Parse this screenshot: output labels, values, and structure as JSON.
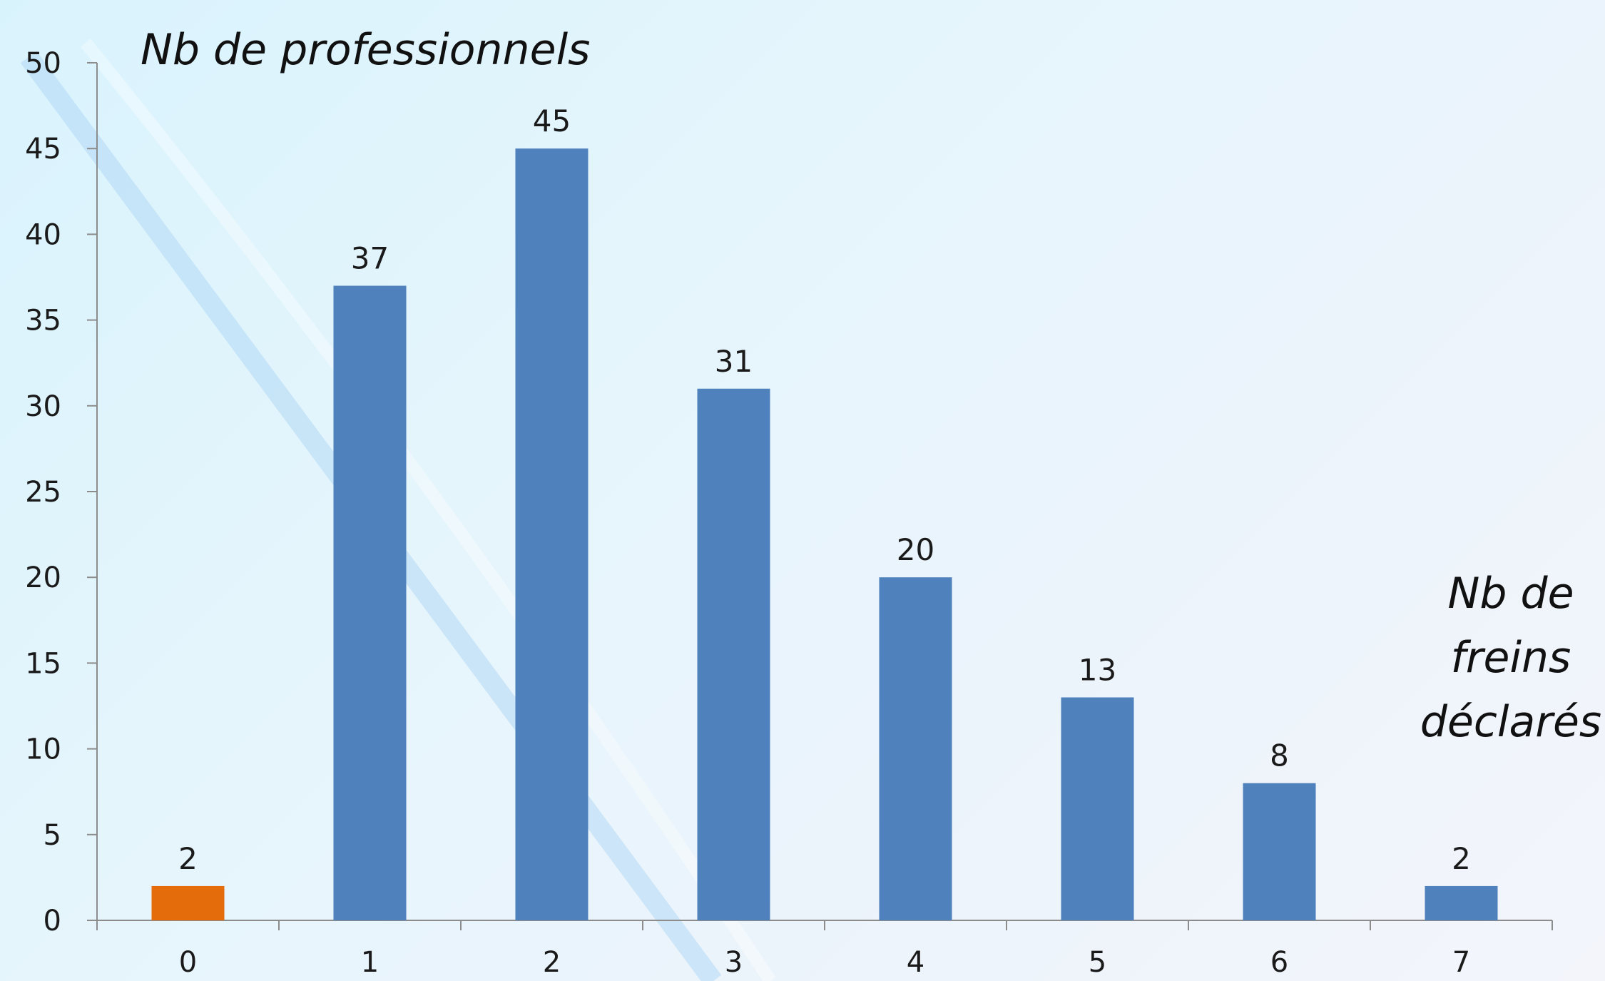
{
  "chart_data": {
    "type": "bar",
    "categories": [
      "0",
      "1",
      "2",
      "3",
      "4",
      "5",
      "6",
      "7"
    ],
    "values": [
      2,
      37,
      45,
      31,
      20,
      13,
      8,
      2
    ],
    "bar_colors": [
      "#e46c0a",
      "#4f81bd",
      "#4f81bd",
      "#4f81bd",
      "#4f81bd",
      "#4f81bd",
      "#4f81bd",
      "#4f81bd"
    ],
    "ylabel": "Nb de professionnels",
    "xlabel_lines": [
      "Nb de",
      "freins",
      "déclarés"
    ],
    "ylim": [
      0,
      50
    ],
    "yticks": [
      0,
      5,
      10,
      15,
      20,
      25,
      30,
      35,
      40,
      45,
      50
    ],
    "grid": false,
    "data_labels": true,
    "axis_color": "#8c8c8c"
  }
}
